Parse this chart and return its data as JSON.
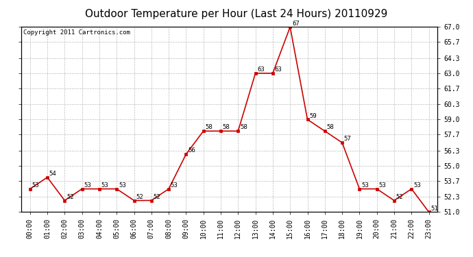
{
  "title": "Outdoor Temperature per Hour (Last 24 Hours) 20110929",
  "copyright_text": "Copyright 2011 Cartronics.com",
  "hours": [
    "00:00",
    "01:00",
    "02:00",
    "03:00",
    "04:00",
    "05:00",
    "06:00",
    "07:00",
    "08:00",
    "09:00",
    "10:00",
    "11:00",
    "12:00",
    "13:00",
    "14:00",
    "15:00",
    "16:00",
    "17:00",
    "18:00",
    "19:00",
    "20:00",
    "21:00",
    "22:00",
    "23:00"
  ],
  "temps": [
    53,
    54,
    52,
    53,
    53,
    53,
    52,
    52,
    53,
    56,
    58,
    58,
    58,
    63,
    63,
    67,
    59,
    58,
    57,
    53,
    53,
    52,
    53,
    51
  ],
  "yticks": [
    51.0,
    52.3,
    53.7,
    55.0,
    56.3,
    57.7,
    59.0,
    60.3,
    61.7,
    63.0,
    64.3,
    65.7,
    67.0
  ],
  "line_color": "#cc0000",
  "marker_color": "#cc0000",
  "grid_color": "#bbbbbb",
  "bg_color": "#ffffff",
  "plot_bg_color": "#ffffff",
  "title_fontsize": 11,
  "label_fontsize": 7,
  "annotation_fontsize": 6.5,
  "copyright_fontsize": 6.5
}
